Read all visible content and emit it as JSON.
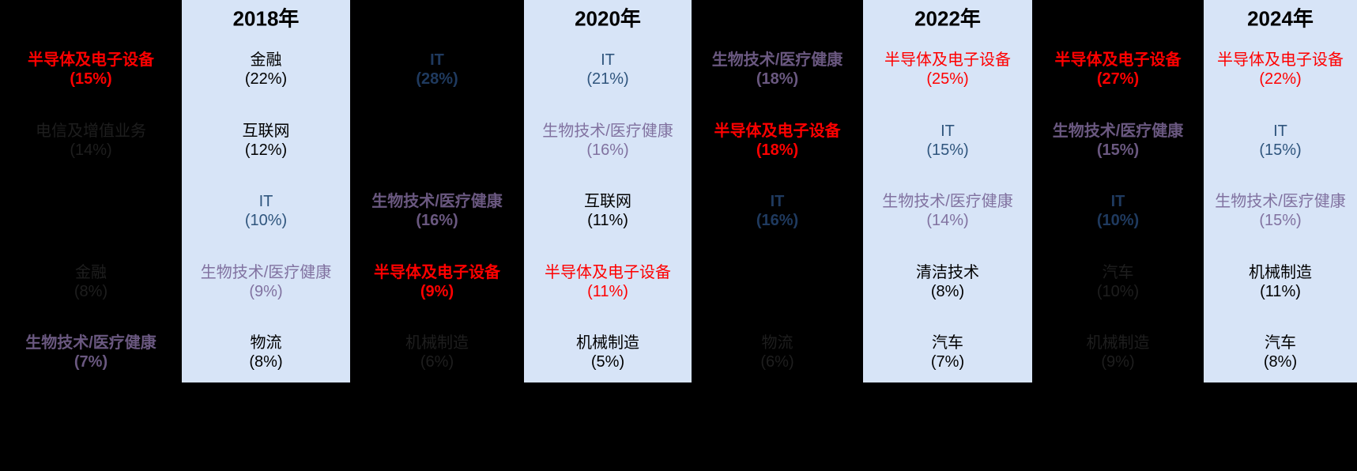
{
  "palette": {
    "canvas_bg": "#000000",
    "year_col_bg": "#D7E4F7",
    "red": "#FF0000",
    "navy_bold": "#1F3A5F",
    "slate_blue": "#2F557D",
    "purple_dark": "#6A5880",
    "purple_light": "#8172A0",
    "black_text": "#000000",
    "faint_gray": "#1E1E1E"
  },
  "columns": [
    {
      "year": "",
      "blue": false,
      "rows": [
        {
          "label": "半导体及电子设备",
          "pct": "(15%)",
          "color": "red",
          "bold": true
        },
        {
          "label": "电信及增值业务",
          "pct": "(14%)",
          "color": "faint_gray",
          "bold": false
        },
        null,
        {
          "label": "金融",
          "pct": "(8%)",
          "color": "faint_gray",
          "bold": false
        },
        {
          "label": "生物技术/医疗健康",
          "pct": "(7%)",
          "color": "purple_dark",
          "bold": true
        }
      ]
    },
    {
      "year": "2018年",
      "blue": true,
      "rows": [
        {
          "label": "金融",
          "pct": "(22%)",
          "color": "black_text",
          "bold": false
        },
        {
          "label": "互联网",
          "pct": "(12%)",
          "color": "black_text",
          "bold": false
        },
        {
          "label": "IT",
          "pct": "(10%)",
          "color": "slate_blue",
          "bold": false
        },
        {
          "label": "生物技术/医疗健康",
          "pct": "(9%)",
          "color": "purple_light",
          "bold": false
        },
        {
          "label": "物流",
          "pct": "(8%)",
          "color": "black_text",
          "bold": false
        }
      ]
    },
    {
      "year": "",
      "blue": false,
      "rows": [
        {
          "label": "IT",
          "pct": "(28%)",
          "color": "navy_bold",
          "bold": true
        },
        null,
        {
          "label": "生物技术/医疗健康",
          "pct": "(16%)",
          "color": "purple_dark",
          "bold": true
        },
        {
          "label": "半导体及电子设备",
          "pct": "(9%)",
          "color": "red",
          "bold": true
        },
        {
          "label": "机械制造",
          "pct": "(6%)",
          "color": "faint_gray",
          "bold": false
        }
      ]
    },
    {
      "year": "2020年",
      "blue": true,
      "rows": [
        {
          "label": "IT",
          "pct": "(21%)",
          "color": "slate_blue",
          "bold": false
        },
        {
          "label": "生物技术/医疗健康",
          "pct": "(16%)",
          "color": "purple_light",
          "bold": false
        },
        {
          "label": "互联网",
          "pct": "(11%)",
          "color": "black_text",
          "bold": false
        },
        {
          "label": "半导体及电子设备",
          "pct": "(11%)",
          "color": "red",
          "bold": false
        },
        {
          "label": "机械制造",
          "pct": "(5%)",
          "color": "black_text",
          "bold": false
        }
      ]
    },
    {
      "year": "",
      "blue": false,
      "rows": [
        {
          "label": "生物技术/医疗健康",
          "pct": "(18%)",
          "color": "purple_dark",
          "bold": true
        },
        {
          "label": "半导体及电子设备",
          "pct": "(18%)",
          "color": "red",
          "bold": true
        },
        {
          "label": "IT",
          "pct": "(16%)",
          "color": "navy_bold",
          "bold": true
        },
        null,
        {
          "label": "物流",
          "pct": "(6%)",
          "color": "faint_gray",
          "bold": false
        }
      ]
    },
    {
      "year": "2022年",
      "blue": true,
      "rows": [
        {
          "label": "半导体及电子设备",
          "pct": "(25%)",
          "color": "red",
          "bold": false
        },
        {
          "label": "IT",
          "pct": "(15%)",
          "color": "slate_blue",
          "bold": false
        },
        {
          "label": "生物技术/医疗健康",
          "pct": "(14%)",
          "color": "purple_light",
          "bold": false
        },
        {
          "label": "清洁技术",
          "pct": "(8%)",
          "color": "black_text",
          "bold": false
        },
        {
          "label": "汽车",
          "pct": "(7%)",
          "color": "black_text",
          "bold": false
        }
      ]
    },
    {
      "year": "",
      "blue": false,
      "rows": [
        {
          "label": "半导体及电子设备",
          "pct": "(27%)",
          "color": "red",
          "bold": true
        },
        {
          "label": "生物技术/医疗健康",
          "pct": "(15%)",
          "color": "purple_dark",
          "bold": true
        },
        {
          "label": "IT",
          "pct": "(10%)",
          "color": "navy_bold",
          "bold": true
        },
        {
          "label": "汽车",
          "pct": "(10%)",
          "color": "faint_gray",
          "bold": false
        },
        {
          "label": "机械制造",
          "pct": "(9%)",
          "color": "faint_gray",
          "bold": false
        }
      ]
    },
    {
      "year": "2024年",
      "blue": true,
      "rows": [
        {
          "label": "半导体及电子设备",
          "pct": "(22%)",
          "color": "red",
          "bold": false
        },
        {
          "label": "IT",
          "pct": "(15%)",
          "color": "slate_blue",
          "bold": false
        },
        {
          "label": "生物技术/医疗健康",
          "pct": "(15%)",
          "color": "purple_light",
          "bold": false
        },
        {
          "label": "机械制造",
          "pct": "(11%)",
          "color": "black_text",
          "bold": false
        },
        {
          "label": "汽车",
          "pct": "(8%)",
          "color": "black_text",
          "bold": false
        }
      ]
    }
  ],
  "chart_data": {
    "type": "table",
    "title": "",
    "layout": "8 vertical year columns, top-5 industry shares per column; even years on light-blue panels, odd-year columns on black with some entries illegible",
    "columns": [
      {
        "year": null,
        "top5": [
          {
            "industry": "半导体及电子设备",
            "share_pct": 15
          },
          {
            "industry": "电信及增值业务",
            "share_pct": 14
          },
          {
            "industry": null,
            "share_pct": null
          },
          {
            "industry": "金融",
            "share_pct": 8
          },
          {
            "industry": "生物技术/医疗健康",
            "share_pct": 7
          }
        ]
      },
      {
        "year": "2018",
        "top5": [
          {
            "industry": "金融",
            "share_pct": 22
          },
          {
            "industry": "互联网",
            "share_pct": 12
          },
          {
            "industry": "IT",
            "share_pct": 10
          },
          {
            "industry": "生物技术/医疗健康",
            "share_pct": 9
          },
          {
            "industry": "物流",
            "share_pct": 8
          }
        ]
      },
      {
        "year": null,
        "top5": [
          {
            "industry": "IT",
            "share_pct": 28
          },
          {
            "industry": null,
            "share_pct": null
          },
          {
            "industry": "生物技术/医疗健康",
            "share_pct": 16
          },
          {
            "industry": "半导体及电子设备",
            "share_pct": 9
          },
          {
            "industry": "机械制造",
            "share_pct": 6
          }
        ]
      },
      {
        "year": "2020",
        "top5": [
          {
            "industry": "IT",
            "share_pct": 21
          },
          {
            "industry": "生物技术/医疗健康",
            "share_pct": 16
          },
          {
            "industry": "互联网",
            "share_pct": 11
          },
          {
            "industry": "半导体及电子设备",
            "share_pct": 11
          },
          {
            "industry": "机械制造",
            "share_pct": 5
          }
        ]
      },
      {
        "year": null,
        "top5": [
          {
            "industry": "生物技术/医疗健康",
            "share_pct": 18
          },
          {
            "industry": "半导体及电子设备",
            "share_pct": 18
          },
          {
            "industry": "IT",
            "share_pct": 16
          },
          {
            "industry": null,
            "share_pct": null
          },
          {
            "industry": "物流",
            "share_pct": 6
          }
        ]
      },
      {
        "year": "2022",
        "top5": [
          {
            "industry": "半导体及电子设备",
            "share_pct": 25
          },
          {
            "industry": "IT",
            "share_pct": 15
          },
          {
            "industry": "生物技术/医疗健康",
            "share_pct": 14
          },
          {
            "industry": "清洁技术",
            "share_pct": 8
          },
          {
            "industry": "汽车",
            "share_pct": 7
          }
        ]
      },
      {
        "year": null,
        "top5": [
          {
            "industry": "半导体及电子设备",
            "share_pct": 27
          },
          {
            "industry": "生物技术/医疗健康",
            "share_pct": 15
          },
          {
            "industry": "IT",
            "share_pct": 10
          },
          {
            "industry": "汽车",
            "share_pct": 10
          },
          {
            "industry": "机械制造",
            "share_pct": 9
          }
        ]
      },
      {
        "year": "2024",
        "top5": [
          {
            "industry": "半导体及电子设备",
            "share_pct": 22
          },
          {
            "industry": "IT",
            "share_pct": 15
          },
          {
            "industry": "生物技术/医疗健康",
            "share_pct": 15
          },
          {
            "industry": "机械制造",
            "share_pct": 11
          },
          {
            "industry": "汽车",
            "share_pct": 8
          }
        ]
      }
    ]
  }
}
